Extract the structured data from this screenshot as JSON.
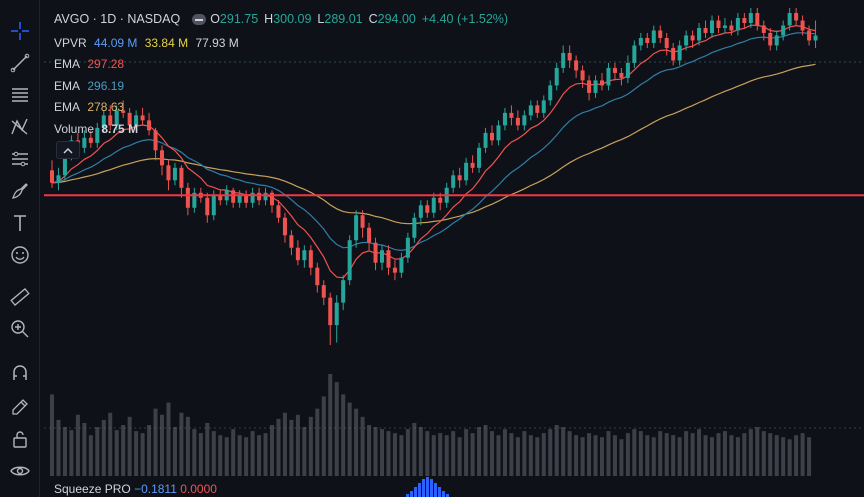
{
  "header": {
    "symbol": "AVGO · 1D · NASDAQ",
    "open_label": "O",
    "open": "291.75",
    "high_label": "H",
    "high": "300.09",
    "low_label": "L",
    "low": "289.01",
    "close_label": "C",
    "close": "294.00",
    "change": "+4.40 (+1.52%)"
  },
  "indicators": {
    "vpvr": {
      "label": "VPVR",
      "v1": "44.09 M",
      "v2": "33.84 M",
      "v3": "77.93 M"
    },
    "ema_fast": {
      "label": "EMA",
      "value": "297.28"
    },
    "ema_mid": {
      "label": "EMA",
      "value": "296.19"
    },
    "ema_slow": {
      "label": "EMA",
      "value": "278.63"
    },
    "volume": {
      "label": "Volume",
      "value": "8.75 M"
    },
    "squeeze": {
      "label": "Squeeze PRO",
      "v1": "−0.1811",
      "v2": "0.0000"
    }
  },
  "toolbar": {
    "tools": [
      "crosshair-icon",
      "trend-line-icon",
      "fib-lines-icon",
      "pattern-icon",
      "long-position-icon",
      "brush-icon",
      "text-icon",
      "emoji-icon",
      "ruler-icon",
      "zoom-in-icon",
      "magnet-icon",
      "lock-drawing-icon",
      "lock-icon",
      "eye-icon"
    ]
  },
  "colors": {
    "background": "#0f1119",
    "up": "#26a69a",
    "down": "#ef5350",
    "ema_fast": "#ef5350",
    "ema_mid": "#2f7ea6",
    "ema_slow": "#c8a15a",
    "hline": "#f23645",
    "squeeze": "#2962ff"
  },
  "chart_data": {
    "type": "candlestick",
    "horizontal_line": 230,
    "y_range": [
      140,
      305
    ],
    "candles": [
      [
        240,
        235,
        244,
        233
      ],
      [
        235,
        238,
        241,
        232
      ],
      [
        238,
        246,
        249,
        236
      ],
      [
        246,
        252,
        254,
        244
      ],
      [
        252,
        249,
        255,
        246
      ],
      [
        249,
        253,
        256,
        247
      ],
      [
        253,
        251,
        256,
        249
      ],
      [
        251,
        257,
        259,
        249
      ],
      [
        257,
        262,
        264,
        255
      ],
      [
        262,
        258,
        266,
        256
      ],
      [
        258,
        264,
        266,
        256
      ],
      [
        264,
        263,
        268,
        261
      ],
      [
        263,
        258,
        265,
        256
      ],
      [
        258,
        262,
        264,
        256
      ],
      [
        262,
        260,
        265,
        258
      ],
      [
        260,
        256,
        263,
        254
      ],
      [
        256,
        248,
        257,
        244
      ],
      [
        248,
        242,
        250,
        238
      ],
      [
        242,
        236,
        244,
        232
      ],
      [
        236,
        241,
        243,
        234
      ],
      [
        241,
        233,
        242,
        229
      ],
      [
        233,
        225,
        235,
        222
      ],
      [
        225,
        231,
        233,
        223
      ],
      [
        231,
        229,
        233,
        227
      ],
      [
        229,
        222,
        231,
        219
      ],
      [
        222,
        230,
        232,
        220
      ],
      [
        230,
        228,
        232,
        226
      ],
      [
        228,
        232,
        234,
        226
      ],
      [
        232,
        227,
        233,
        225
      ],
      [
        227,
        230,
        232,
        225
      ],
      [
        230,
        227,
        232,
        225
      ],
      [
        227,
        231,
        233,
        225
      ],
      [
        231,
        228,
        233,
        226
      ],
      [
        228,
        231,
        233,
        226
      ],
      [
        231,
        226,
        232,
        223
      ],
      [
        226,
        221,
        228,
        219
      ],
      [
        221,
        214,
        223,
        211
      ],
      [
        214,
        209,
        216,
        206
      ],
      [
        209,
        204,
        212,
        202
      ],
      [
        204,
        208,
        210,
        201
      ],
      [
        208,
        201,
        210,
        198
      ],
      [
        201,
        194,
        203,
        191
      ],
      [
        194,
        189,
        196,
        186
      ],
      [
        189,
        178,
        191,
        170
      ],
      [
        178,
        187,
        190,
        171
      ],
      [
        187,
        196,
        198,
        184
      ],
      [
        196,
        212,
        214,
        194
      ],
      [
        212,
        222,
        224,
        209
      ],
      [
        222,
        217,
        224,
        213
      ],
      [
        217,
        211,
        219,
        208
      ],
      [
        211,
        203,
        213,
        200
      ],
      [
        203,
        208,
        210,
        200
      ],
      [
        208,
        201,
        210,
        198
      ],
      [
        201,
        199,
        204,
        196
      ],
      [
        199,
        205,
        207,
        197
      ],
      [
        205,
        213,
        215,
        203
      ],
      [
        213,
        221,
        223,
        211
      ],
      [
        221,
        226,
        228,
        218
      ],
      [
        226,
        223,
        228,
        221
      ],
      [
        223,
        229,
        231,
        221
      ],
      [
        229,
        227,
        231,
        224
      ],
      [
        227,
        233,
        235,
        225
      ],
      [
        233,
        238,
        240,
        231
      ],
      [
        238,
        236,
        241,
        233
      ],
      [
        236,
        243,
        245,
        234
      ],
      [
        243,
        241,
        246,
        239
      ],
      [
        241,
        249,
        251,
        239
      ],
      [
        249,
        255,
        257,
        247
      ],
      [
        255,
        252,
        258,
        250
      ],
      [
        252,
        258,
        260,
        250
      ],
      [
        258,
        263,
        265,
        256
      ],
      [
        263,
        261,
        266,
        258
      ],
      [
        261,
        258,
        264,
        256
      ],
      [
        258,
        262,
        264,
        256
      ],
      [
        262,
        266,
        268,
        260
      ],
      [
        266,
        263,
        268,
        261
      ],
      [
        263,
        268,
        270,
        261
      ],
      [
        268,
        274,
        276,
        266
      ],
      [
        274,
        281,
        283,
        272
      ],
      [
        281,
        287,
        290,
        279
      ],
      [
        287,
        284,
        290,
        281
      ],
      [
        284,
        280,
        286,
        277
      ],
      [
        280,
        276,
        282,
        273
      ],
      [
        276,
        271,
        278,
        268
      ],
      [
        271,
        276,
        278,
        269
      ],
      [
        276,
        274,
        279,
        272
      ],
      [
        274,
        281,
        283,
        272
      ],
      [
        281,
        279,
        283,
        276
      ],
      [
        279,
        277,
        281,
        274
      ],
      [
        277,
        283,
        286,
        275
      ],
      [
        283,
        290,
        292,
        281
      ],
      [
        290,
        293,
        295,
        288
      ],
      [
        293,
        291,
        295,
        289
      ],
      [
        291,
        296,
        298,
        289
      ],
      [
        296,
        293,
        298,
        291
      ],
      [
        293,
        289,
        295,
        286
      ],
      [
        289,
        284,
        291,
        282
      ],
      [
        284,
        290,
        292,
        282
      ],
      [
        290,
        294,
        296,
        288
      ],
      [
        294,
        292,
        296,
        289
      ],
      [
        292,
        297,
        299,
        290
      ],
      [
        297,
        295,
        300,
        293
      ],
      [
        295,
        300,
        302,
        293
      ],
      [
        300,
        297,
        302,
        295
      ],
      [
        297,
        298,
        301,
        295
      ],
      [
        298,
        296,
        300,
        294
      ],
      [
        296,
        301,
        303,
        294
      ],
      [
        301,
        299,
        303,
        297
      ],
      [
        299,
        303,
        305,
        297
      ],
      [
        303,
        298,
        305,
        296
      ],
      [
        298,
        295,
        300,
        292
      ],
      [
        295,
        290,
        297,
        288
      ],
      [
        290,
        294,
        296,
        288
      ],
      [
        294,
        298,
        300,
        292
      ],
      [
        298,
        303,
        305,
        296
      ],
      [
        303,
        300,
        305,
        298
      ],
      [
        300,
        296,
        302,
        294
      ],
      [
        296,
        292,
        298,
        290
      ],
      [
        292,
        294,
        300,
        289
      ]
    ],
    "volumes": [
      80,
      55,
      48,
      45,
      60,
      52,
      40,
      48,
      55,
      62,
      45,
      50,
      58,
      44,
      42,
      50,
      66,
      60,
      72,
      48,
      62,
      58,
      46,
      42,
      52,
      44,
      40,
      38,
      46,
      40,
      38,
      44,
      40,
      42,
      50,
      56,
      62,
      55,
      60,
      48,
      58,
      66,
      78,
      100,
      92,
      80,
      72,
      66,
      58,
      50,
      48,
      46,
      44,
      42,
      40,
      46,
      52,
      48,
      44,
      40,
      42,
      40,
      44,
      38,
      46,
      42,
      48,
      50,
      44,
      40,
      46,
      42,
      38,
      44,
      40,
      38,
      42,
      46,
      50,
      48,
      44,
      40,
      38,
      42,
      40,
      38,
      44,
      40,
      36,
      42,
      46,
      44,
      40,
      38,
      44,
      42,
      40,
      38,
      44,
      42,
      46,
      40,
      38,
      42,
      44,
      40,
      38,
      42,
      46,
      48,
      44,
      42,
      40,
      38,
      36,
      40,
      42,
      38
    ]
  }
}
